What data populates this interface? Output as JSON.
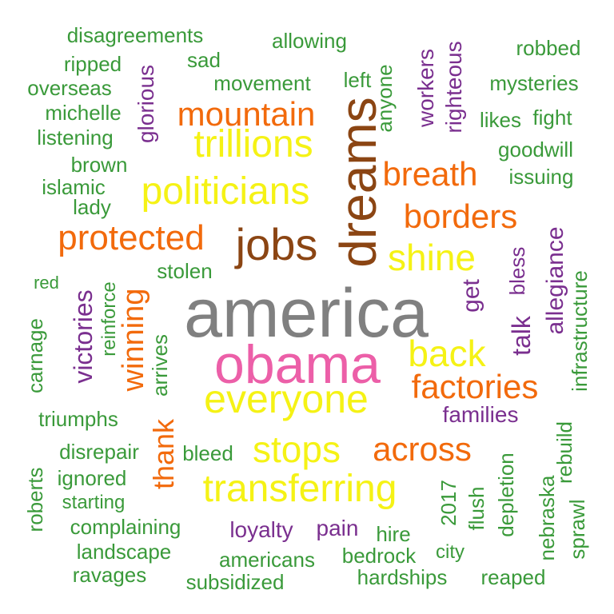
{
  "colors": {
    "green": "#3a9a3a",
    "purple": "#7a2f8f",
    "orange": "#f26a0c",
    "yellow": "#f5f215",
    "brown": "#8b4513",
    "gray": "#808080",
    "pink": "#ec5fa8"
  },
  "words": {
    "america": "america",
    "obama": "obama",
    "dreams": "dreams",
    "jobs": "jobs",
    "everyone": "everyone",
    "politicians": "politicians",
    "trillions": "trillions",
    "transferring": "transferring",
    "shine": "shine",
    "back": "back",
    "stops": "stops",
    "protected": "protected",
    "mountain": "mountain",
    "borders": "borders",
    "breath": "breath",
    "factories": "factories",
    "across": "across",
    "winning": "winning",
    "thank": "thank",
    "victories": "victories",
    "talk": "talk",
    "get": "get",
    "allegiance": "allegiance",
    "workers": "workers",
    "righteous": "righteous",
    "glorious": "glorious",
    "loyalty": "loyalty",
    "pain": "pain",
    "families": "families",
    "bless": "bless",
    "disagreements": "disagreements",
    "allowing": "allowing",
    "robbed": "robbed",
    "ripped": "ripped",
    "sad": "sad",
    "left": "left",
    "anyone": "anyone",
    "overseas": "overseas",
    "movement": "movement",
    "mysteries": "mysteries",
    "michelle": "michelle",
    "likes": "likes",
    "fight": "fight",
    "listening": "listening",
    "goodwill": "goodwill",
    "brown": "brown",
    "islamic": "islamic",
    "issuing": "issuing",
    "lady": "lady",
    "stolen": "stolen",
    "red": "red",
    "reinforce": "reinforce",
    "carnage": "carnage",
    "arrives": "arrives",
    "infrastructure": "infrastructure",
    "triumphs": "triumphs",
    "rebuild": "rebuild",
    "disrepair": "disrepair",
    "bleed": "bleed",
    "depletion": "depletion",
    "ignored": "ignored",
    "year_2017": "2017",
    "flush": "flush",
    "nebraska": "nebraska",
    "roberts": "roberts",
    "starting": "starting",
    "sprawl": "sprawl",
    "complaining": "complaining",
    "hire": "hire",
    "landscape": "landscape",
    "city": "city",
    "bedrock": "bedrock",
    "americans": "americans",
    "ravages": "ravages",
    "hardships": "hardships",
    "reaped": "reaped",
    "subsidized": "subsidized"
  }
}
